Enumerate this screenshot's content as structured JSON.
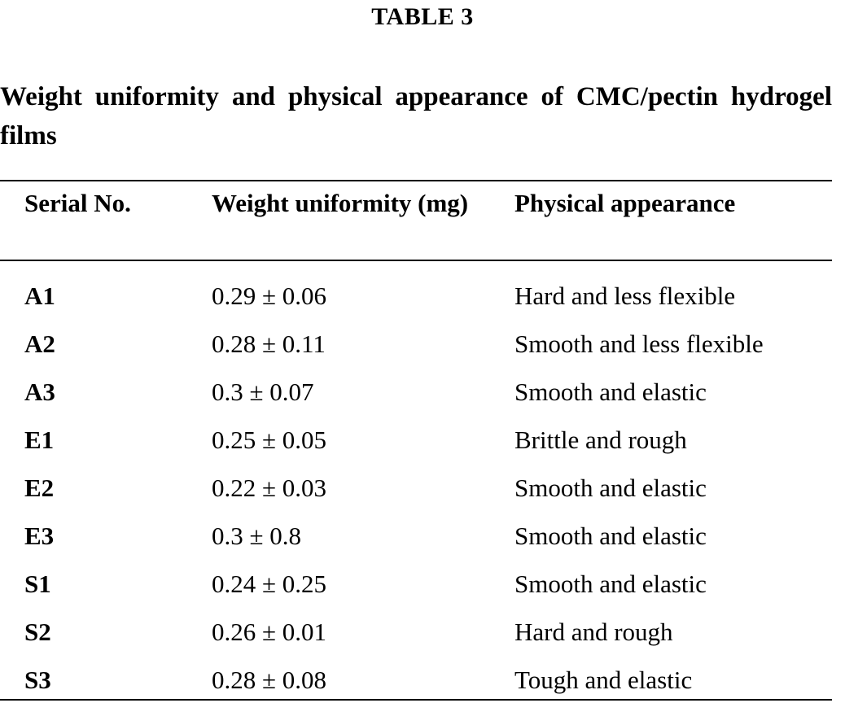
{
  "table_label": "TABLE 3",
  "caption": "Weight uniformity and physical appearance of CMC/pectin hydrogel films",
  "columns": [
    "Serial No.",
    "Weight uniformity (mg)",
    "Physical appearance"
  ],
  "rows": [
    {
      "serial": "A1",
      "weight": "0.29 ± 0.06",
      "appearance": "Hard and less flexible"
    },
    {
      "serial": "A2",
      "weight": "0.28 ± 0.11",
      "appearance": "Smooth and less flexible"
    },
    {
      "serial": "A3",
      "weight": "0.3 ± 0.07",
      "appearance": "Smooth and elastic"
    },
    {
      "serial": "E1",
      "weight": "0.25 ± 0.05",
      "appearance": "Brittle and rough"
    },
    {
      "serial": "E2",
      "weight": "0.22 ± 0.03",
      "appearance": "Smooth and elastic"
    },
    {
      "serial": "E3",
      "weight": "0.3 ± 0.8",
      "appearance": "Smooth and elastic"
    },
    {
      "serial": "S1",
      "weight": "0.24 ± 0.25",
      "appearance": "Smooth and elastic"
    },
    {
      "serial": "S2",
      "weight": "0.26 ± 0.01",
      "appearance": "Hard and rough"
    },
    {
      "serial": "S3",
      "weight": "0.28 ± 0.08",
      "appearance": "Tough and elastic"
    }
  ]
}
